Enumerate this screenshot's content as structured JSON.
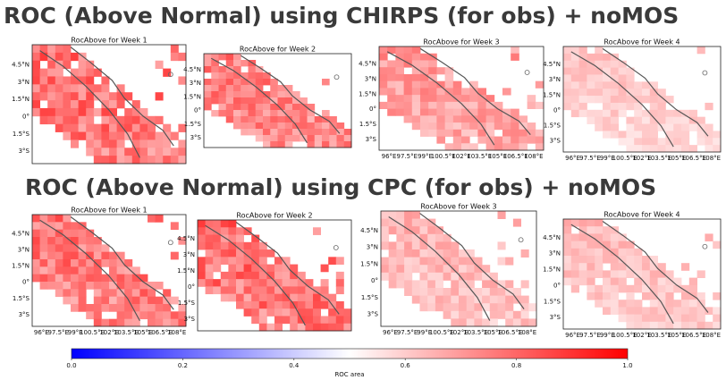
{
  "headings": [
    "ROC (Above Normal) using CHIRPS (for obs) + noMOS",
    "ROC (Above Normal) using CPC (for obs) + noMOS"
  ],
  "panels": [
    {
      "title": "RocAbove for Week 1",
      "lat_labels": [
        "4.5°N",
        "3°N",
        "1.5°N",
        "0°",
        "1.5°S",
        "3°S"
      ]
    },
    {
      "title": "RocAbove for Week 2",
      "lat_labels": [
        "4.5°N",
        "3°N",
        "1.5°N",
        "0°",
        "1.5°S",
        "3°S"
      ]
    },
    {
      "title": "RocAbove for Week 3",
      "lat_labels": [
        "4.5°N",
        "3°N",
        "1.5°N",
        "0°",
        "1.5°S",
        "3°S"
      ],
      "lon_labels": [
        "96°E",
        "97.5°E",
        "99°E",
        "100.5°E",
        "102°E",
        "103.5°E",
        "105°E",
        "106.5°E",
        "108°E"
      ]
    },
    {
      "title": "RocAbove for Week 4",
      "lat_labels": [
        "4.5°N",
        "3°N",
        "1.5°N",
        "0°",
        "1.5°S",
        "3°S"
      ],
      "lon_labels": [
        "96°E",
        "97.5°E",
        "99°E",
        "100.5°E",
        "102°E",
        "103.5°E",
        "105°E",
        "106.5°E",
        "108°E"
      ]
    },
    {
      "title": "RocAbove for Week 1",
      "lat_labels": [
        "4.5°N",
        "3°N",
        "1.5°N",
        "0°",
        "1.5°S",
        "3°S"
      ],
      "lon_labels": [
        "96°E",
        "97.5°E",
        "99°E",
        "100.5°E",
        "102°E",
        "103.5°E",
        "105°E",
        "106.5°E",
        "108°E"
      ]
    },
    {
      "title": "RocAbove for Week 2",
      "lat_labels": [
        "4.5°N",
        "3°N",
        "1.5°N",
        "0°",
        "1.5°S",
        "3°S"
      ]
    },
    {
      "title": "RocAbove for Week 3",
      "lat_labels": [
        "4.5°N",
        "3°N",
        "1.5°N",
        "0°",
        "1.5°S",
        "3°S"
      ],
      "lon_labels": [
        "96°E",
        "97.5°E",
        "99°E",
        "100.5°E",
        "102°E",
        "103.5°E",
        "105°E",
        "106.5°E",
        "108°E"
      ]
    },
    {
      "title": "RocAbove for Week 4",
      "lat_labels": [
        "4.5°N",
        "3°N",
        "1.5°N",
        "0°",
        "1.5°S",
        "3°S"
      ],
      "lon_labels": [
        "96°E",
        "97.5°E",
        "99°E",
        "100.5°E",
        "102°E",
        "103.5°E",
        "105°E",
        "106.5°E",
        "108°E"
      ]
    }
  ],
  "colorbar": {
    "label": "ROC area",
    "lim": [
      0,
      1
    ],
    "ticks": [
      {
        "value": 0,
        "label": "0.0"
      },
      0.2,
      0.4,
      0.6,
      0.8,
      {
        "value": 1,
        "label": "1.0"
      }
    ]
  }
}
